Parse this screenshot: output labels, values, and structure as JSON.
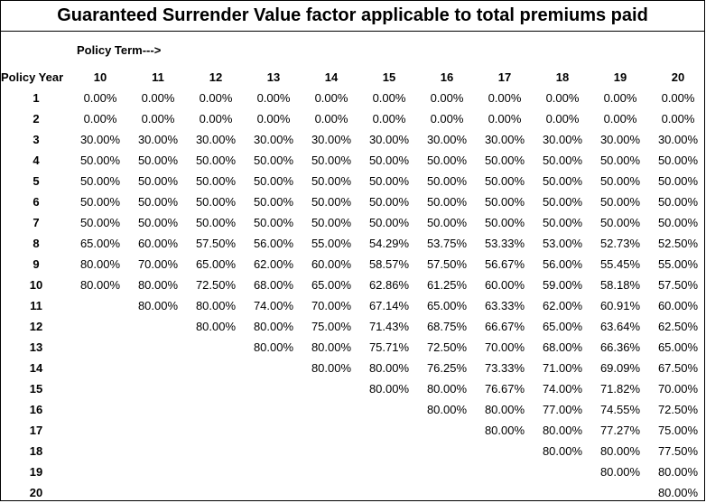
{
  "title": "Guaranteed Surrender Value factor applicable to total premiums paid",
  "term_label": "Policy Term--->",
  "row_header": "Policy Year",
  "terms": [
    "10",
    "11",
    "12",
    "13",
    "14",
    "15",
    "16",
    "17",
    "18",
    "19",
    "20"
  ],
  "rows": [
    {
      "year": "1",
      "values": [
        "0.00%",
        "0.00%",
        "0.00%",
        "0.00%",
        "0.00%",
        "0.00%",
        "0.00%",
        "0.00%",
        "0.00%",
        "0.00%",
        "0.00%"
      ]
    },
    {
      "year": "2",
      "values": [
        "0.00%",
        "0.00%",
        "0.00%",
        "0.00%",
        "0.00%",
        "0.00%",
        "0.00%",
        "0.00%",
        "0.00%",
        "0.00%",
        "0.00%"
      ]
    },
    {
      "year": "3",
      "values": [
        "30.00%",
        "30.00%",
        "30.00%",
        "30.00%",
        "30.00%",
        "30.00%",
        "30.00%",
        "30.00%",
        "30.00%",
        "30.00%",
        "30.00%"
      ]
    },
    {
      "year": "4",
      "values": [
        "50.00%",
        "50.00%",
        "50.00%",
        "50.00%",
        "50.00%",
        "50.00%",
        "50.00%",
        "50.00%",
        "50.00%",
        "50.00%",
        "50.00%"
      ]
    },
    {
      "year": "5",
      "values": [
        "50.00%",
        "50.00%",
        "50.00%",
        "50.00%",
        "50.00%",
        "50.00%",
        "50.00%",
        "50.00%",
        "50.00%",
        "50.00%",
        "50.00%"
      ]
    },
    {
      "year": "6",
      "values": [
        "50.00%",
        "50.00%",
        "50.00%",
        "50.00%",
        "50.00%",
        "50.00%",
        "50.00%",
        "50.00%",
        "50.00%",
        "50.00%",
        "50.00%"
      ]
    },
    {
      "year": "7",
      "values": [
        "50.00%",
        "50.00%",
        "50.00%",
        "50.00%",
        "50.00%",
        "50.00%",
        "50.00%",
        "50.00%",
        "50.00%",
        "50.00%",
        "50.00%"
      ]
    },
    {
      "year": "8",
      "values": [
        "65.00%",
        "60.00%",
        "57.50%",
        "56.00%",
        "55.00%",
        "54.29%",
        "53.75%",
        "53.33%",
        "53.00%",
        "52.73%",
        "52.50%"
      ]
    },
    {
      "year": "9",
      "values": [
        "80.00%",
        "70.00%",
        "65.00%",
        "62.00%",
        "60.00%",
        "58.57%",
        "57.50%",
        "56.67%",
        "56.00%",
        "55.45%",
        "55.00%"
      ]
    },
    {
      "year": "10",
      "values": [
        "80.00%",
        "80.00%",
        "72.50%",
        "68.00%",
        "65.00%",
        "62.86%",
        "61.25%",
        "60.00%",
        "59.00%",
        "58.18%",
        "57.50%"
      ]
    },
    {
      "year": "11",
      "values": [
        "",
        "80.00%",
        "80.00%",
        "74.00%",
        "70.00%",
        "67.14%",
        "65.00%",
        "63.33%",
        "62.00%",
        "60.91%",
        "60.00%"
      ]
    },
    {
      "year": "12",
      "values": [
        "",
        "",
        "80.00%",
        "80.00%",
        "75.00%",
        "71.43%",
        "68.75%",
        "66.67%",
        "65.00%",
        "63.64%",
        "62.50%"
      ]
    },
    {
      "year": "13",
      "values": [
        "",
        "",
        "",
        "80.00%",
        "80.00%",
        "75.71%",
        "72.50%",
        "70.00%",
        "68.00%",
        "66.36%",
        "65.00%"
      ]
    },
    {
      "year": "14",
      "values": [
        "",
        "",
        "",
        "",
        "80.00%",
        "80.00%",
        "76.25%",
        "73.33%",
        "71.00%",
        "69.09%",
        "67.50%"
      ]
    },
    {
      "year": "15",
      "values": [
        "",
        "",
        "",
        "",
        "",
        "80.00%",
        "80.00%",
        "76.67%",
        "74.00%",
        "71.82%",
        "70.00%"
      ]
    },
    {
      "year": "16",
      "values": [
        "",
        "",
        "",
        "",
        "",
        "",
        "80.00%",
        "80.00%",
        "77.00%",
        "74.55%",
        "72.50%"
      ]
    },
    {
      "year": "17",
      "values": [
        "",
        "",
        "",
        "",
        "",
        "",
        "",
        "80.00%",
        "80.00%",
        "77.27%",
        "75.00%"
      ]
    },
    {
      "year": "18",
      "values": [
        "",
        "",
        "",
        "",
        "",
        "",
        "",
        "",
        "80.00%",
        "80.00%",
        "77.50%"
      ]
    },
    {
      "year": "19",
      "values": [
        "",
        "",
        "",
        "",
        "",
        "",
        "",
        "",
        "",
        "80.00%",
        "80.00%"
      ]
    },
    {
      "year": "20",
      "values": [
        "",
        "",
        "",
        "",
        "",
        "",
        "",
        "",
        "",
        "",
        "80.00%"
      ]
    }
  ]
}
